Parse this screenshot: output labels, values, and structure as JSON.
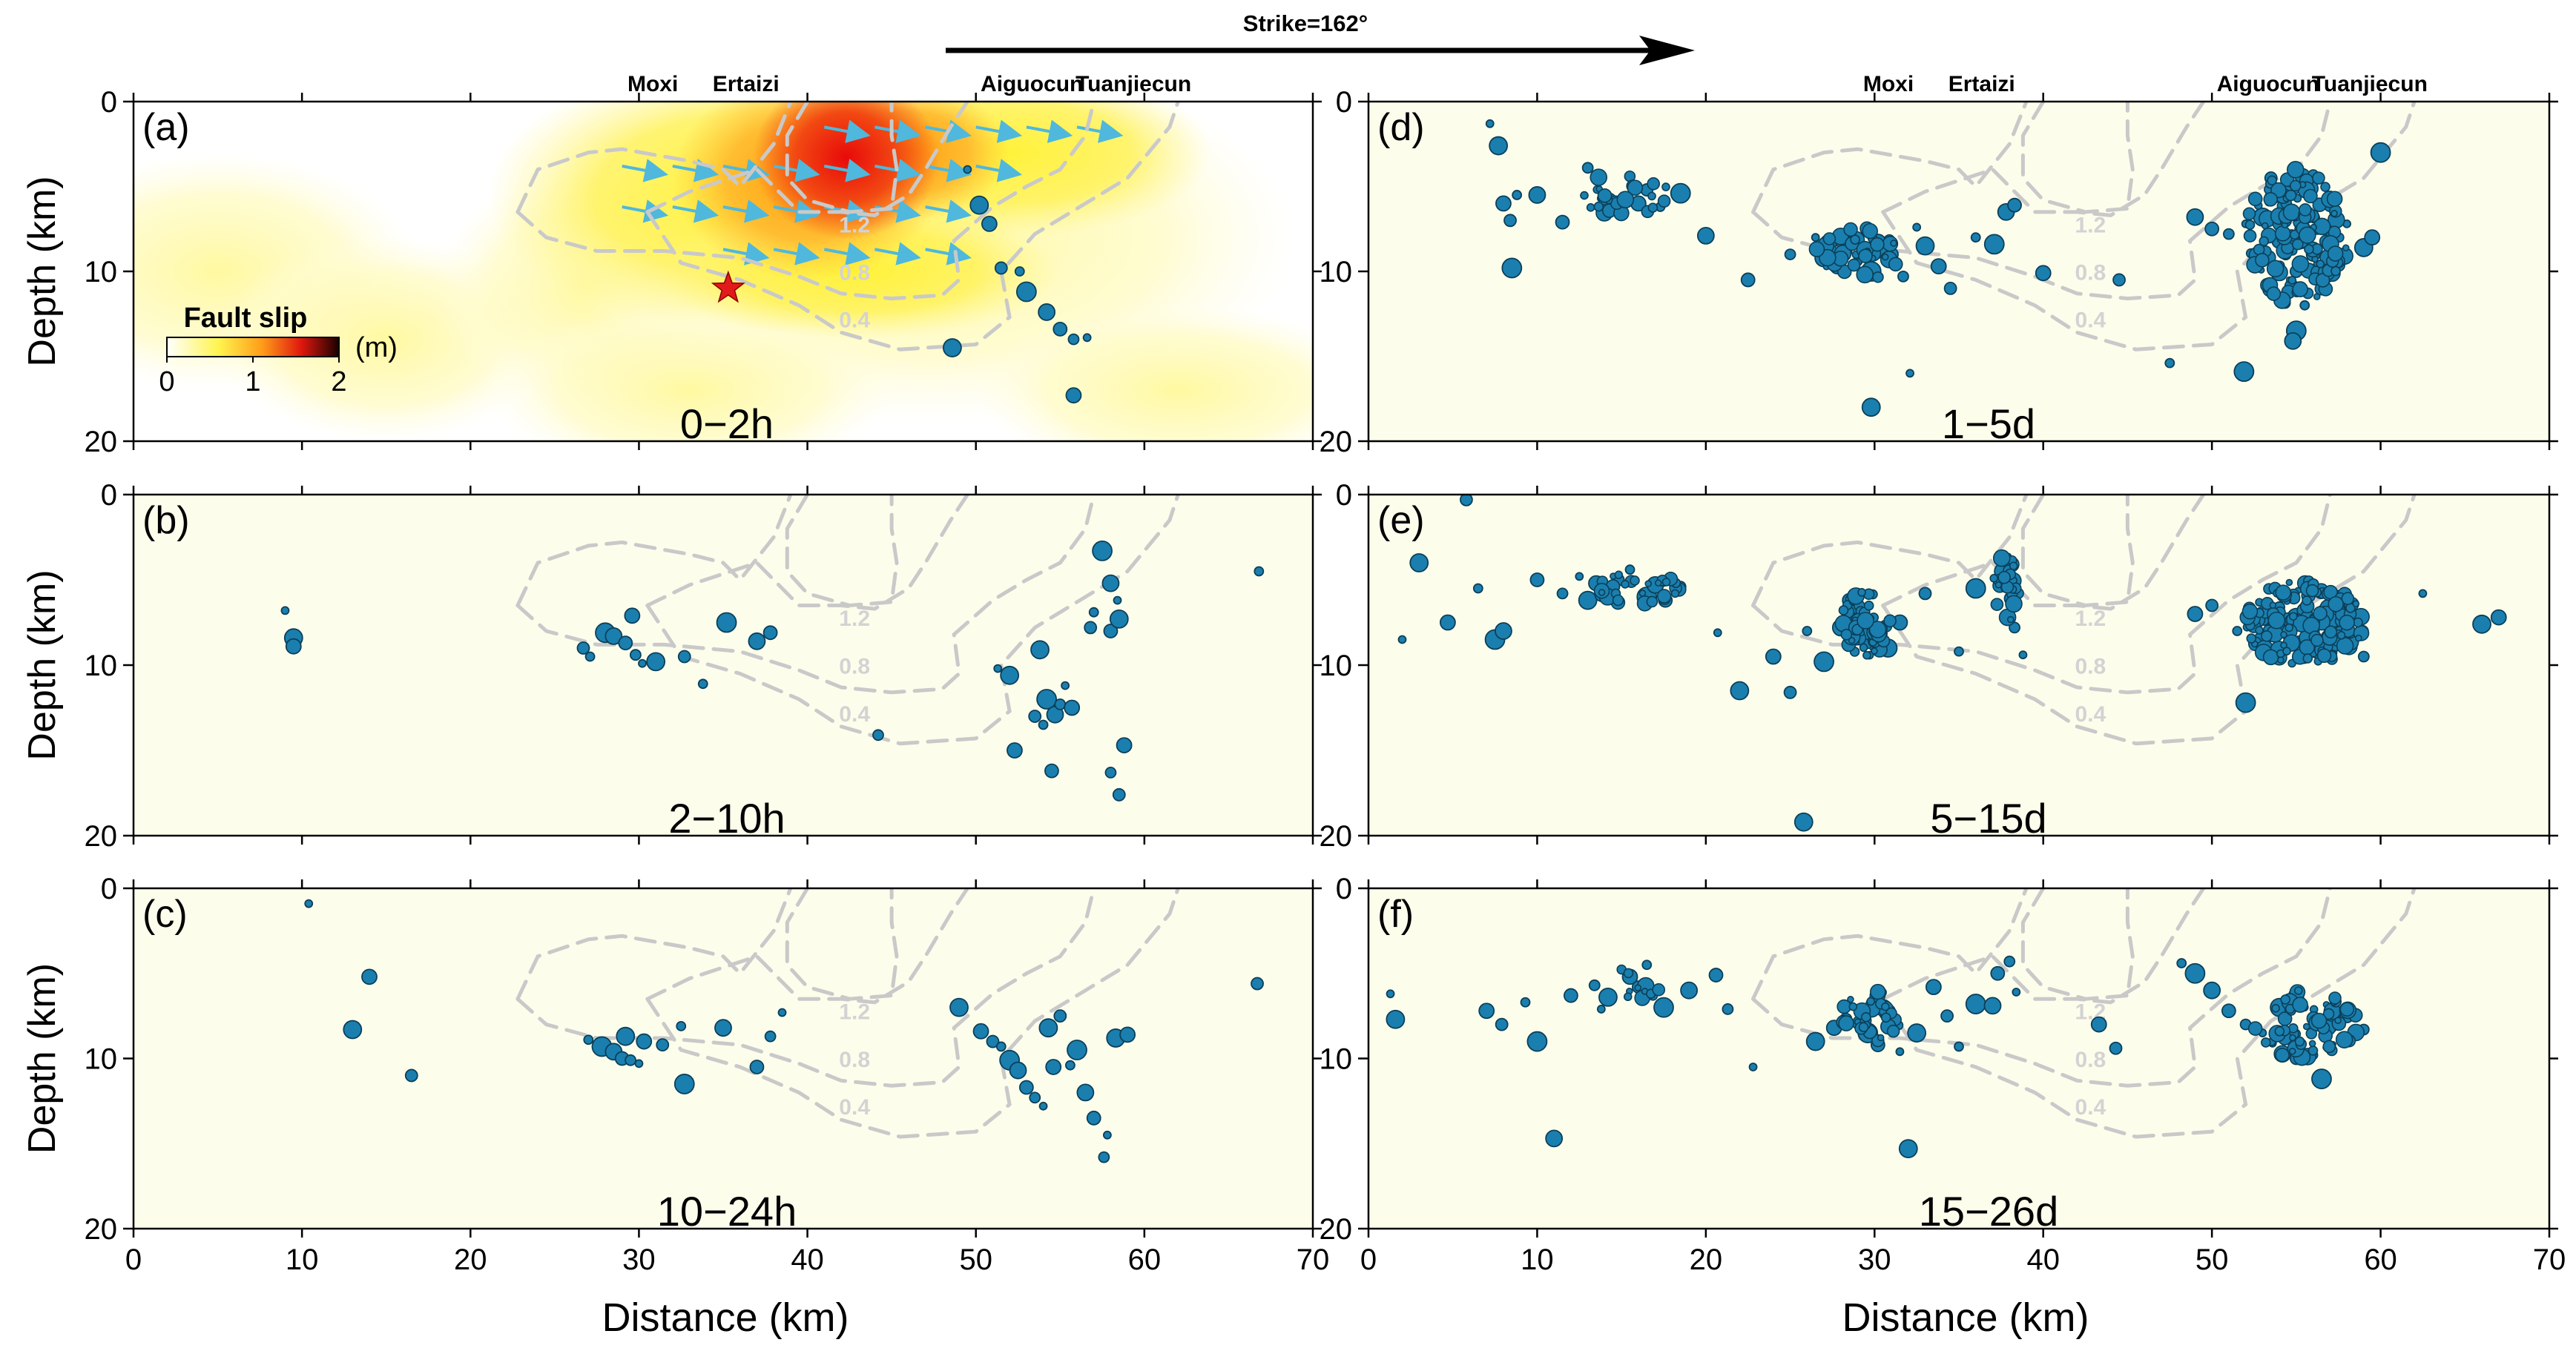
{
  "figure": {
    "strike_label": "Strike=162°",
    "xlabel": "Distance (km)",
    "ylabel": "Depth (km)",
    "xlim": [
      0,
      70
    ],
    "ylim": [
      0,
      20
    ],
    "xticks": [
      0,
      10,
      20,
      30,
      40,
      50,
      60,
      70
    ],
    "yticks": [
      0,
      10,
      20
    ],
    "towns": [
      {
        "name": "Moxi",
        "x": 31
      },
      {
        "name": "Ertaizi",
        "x": 36
      },
      {
        "name": "Aiguocun",
        "x": 53.5
      },
      {
        "name": "Tuanjiecun",
        "x": 59
      }
    ],
    "colors": {
      "panel_bg": "#fdfdec",
      "quake_fill": "#1a7fae",
      "quake_stroke": "#0b3f59",
      "contour": "#c9c9c9",
      "arrow": "#4fb8dc",
      "star": "#e31a1c"
    }
  },
  "colorbar": {
    "title": "Fault slip",
    "unit": "(m)",
    "ticks": [
      "0",
      "1",
      "2"
    ]
  },
  "contours": [
    {
      "level": "1.2",
      "label_x": 42.8,
      "label_y": 7.7
    },
    {
      "level": "0.8",
      "label_x": 42.8,
      "label_y": 10.5
    },
    {
      "level": "0.4",
      "label_x": 42.8,
      "label_y": 13.3
    }
  ],
  "panels": [
    {
      "id": "a",
      "label": "(a)",
      "time": "0−2h"
    },
    {
      "id": "b",
      "label": "(b)",
      "time": "2−10h"
    },
    {
      "id": "c",
      "label": "(c)",
      "time": "10−24h"
    },
    {
      "id": "d",
      "label": "(d)",
      "time": "1−5d"
    },
    {
      "id": "e",
      "label": "(e)",
      "time": "5−15d"
    },
    {
      "id": "f",
      "label": "(f)",
      "time": "15−26d"
    }
  ],
  "chart_data": [
    {
      "type": "scatter",
      "panel": "a",
      "time_window": "0−2h",
      "mainshock": {
        "x": 35.3,
        "y": 11
      },
      "points": [
        [
          49.5,
          4
        ],
        [
          50.2,
          6.1
        ],
        [
          50.8,
          7.2
        ],
        [
          51.5,
          9.8
        ],
        [
          52.6,
          10
        ],
        [
          53,
          11.2
        ],
        [
          54.2,
          12.4
        ],
        [
          55,
          13.4
        ],
        [
          55.8,
          14
        ],
        [
          56.6,
          13.9
        ],
        [
          48.6,
          14.5
        ],
        [
          55.8,
          17.3
        ]
      ]
    },
    {
      "type": "scatter",
      "panel": "b",
      "time_window": "2−10h",
      "points": [
        [
          9,
          6.8
        ],
        [
          9.5,
          8.4
        ],
        [
          9.5,
          8.9
        ],
        [
          26.7,
          9
        ],
        [
          27.1,
          9.5
        ],
        [
          28,
          8.1
        ],
        [
          28.5,
          8.3
        ],
        [
          29.2,
          8.7
        ],
        [
          29.8,
          9.4
        ],
        [
          30.2,
          9.9
        ],
        [
          31,
          9.8
        ],
        [
          29.6,
          7.1
        ],
        [
          32.7,
          9.5
        ],
        [
          33.8,
          11.1
        ],
        [
          35.2,
          7.5
        ],
        [
          37,
          8.6
        ],
        [
          37.8,
          8.1
        ],
        [
          44.2,
          14.1
        ],
        [
          51.3,
          10.2
        ],
        [
          52,
          10.6
        ],
        [
          52.3,
          15
        ],
        [
          53.5,
          13
        ],
        [
          54,
          13.5
        ],
        [
          54.2,
          12
        ],
        [
          54.7,
          12.9
        ],
        [
          54.5,
          16.2
        ],
        [
          55,
          12.3
        ],
        [
          55.3,
          11.2
        ],
        [
          53.8,
          9.1
        ],
        [
          55.7,
          12.5
        ],
        [
          56.8,
          7.8
        ],
        [
          57,
          6.9
        ],
        [
          57.5,
          3.3
        ],
        [
          58,
          5.2
        ],
        [
          58,
          8
        ],
        [
          58,
          16.3
        ],
        [
          58.4,
          6.2
        ],
        [
          58.5,
          7.3
        ],
        [
          58.8,
          14.7
        ],
        [
          58.5,
          17.6
        ],
        [
          66.8,
          4.5
        ]
      ]
    },
    {
      "type": "scatter",
      "panel": "c",
      "time_window": "10−24h",
      "points": [
        [
          10.4,
          0.9
        ],
        [
          13,
          8.3
        ],
        [
          14,
          5.2
        ],
        [
          16.5,
          11
        ],
        [
          27,
          8.9
        ],
        [
          27.8,
          9.3
        ],
        [
          28.5,
          9.6
        ],
        [
          29,
          10
        ],
        [
          29.5,
          10.1
        ],
        [
          30,
          10.3
        ],
        [
          29.2,
          8.7
        ],
        [
          30.3,
          9
        ],
        [
          31.4,
          9.2
        ],
        [
          32.5,
          8.1
        ],
        [
          32.7,
          11.5
        ],
        [
          35,
          8.2
        ],
        [
          37,
          10.5
        ],
        [
          37.8,
          8.7
        ],
        [
          38.5,
          7.3
        ],
        [
          49,
          7
        ],
        [
          50.3,
          8.4
        ],
        [
          51,
          9
        ],
        [
          51.5,
          9.3
        ],
        [
          52,
          10.1
        ],
        [
          52.5,
          10.7
        ],
        [
          53,
          11.7
        ],
        [
          53.5,
          12.3
        ],
        [
          54,
          12.8
        ],
        [
          54.3,
          8.2
        ],
        [
          54.6,
          10.5
        ],
        [
          55,
          7.5
        ],
        [
          55.6,
          10.4
        ],
        [
          56,
          9.5
        ],
        [
          56.5,
          12
        ],
        [
          57,
          13.5
        ],
        [
          57.6,
          15.8
        ],
        [
          57.8,
          14.5
        ],
        [
          58.3,
          8.8
        ],
        [
          59,
          8.6
        ],
        [
          66.7,
          5.6
        ]
      ]
    },
    {
      "type": "scatter",
      "panel": "d",
      "time_window": "1−5d",
      "points": [
        [
          7.2,
          1.3
        ],
        [
          7.7,
          2.6
        ],
        [
          8,
          6
        ],
        [
          8.4,
          7
        ],
        [
          8.8,
          5.5
        ],
        [
          8.5,
          9.8
        ],
        [
          10,
          5.5
        ],
        [
          11.5,
          7.1
        ],
        [
          13,
          3.9
        ],
        [
          13.8,
          5.7
        ],
        [
          14.2,
          5.9
        ],
        [
          16,
          6
        ],
        [
          16.5,
          5.2
        ],
        [
          17.3,
          6.2
        ],
        [
          18.5,
          5.4
        ],
        [
          20,
          7.9
        ],
        [
          22.5,
          10.5
        ],
        [
          25,
          9
        ],
        [
          26.5,
          8
        ],
        [
          27,
          9.2
        ],
        [
          27.8,
          9.7
        ],
        [
          28.3,
          8.8
        ],
        [
          29,
          9.4
        ],
        [
          29.8,
          10
        ],
        [
          30.2,
          8.3
        ],
        [
          31,
          9
        ],
        [
          31.7,
          10.3
        ],
        [
          32.5,
          7.4
        ],
        [
          33,
          8.5
        ],
        [
          33.8,
          9.7
        ],
        [
          34.5,
          11
        ],
        [
          36,
          8
        ],
        [
          37.1,
          8.4
        ],
        [
          37.8,
          6.5
        ],
        [
          38.3,
          6.1
        ],
        [
          31,
          9.5
        ],
        [
          32.1,
          16
        ],
        [
          29.8,
          18
        ],
        [
          40,
          10.1
        ],
        [
          44.5,
          10.5
        ],
        [
          47.5,
          15.4
        ],
        [
          51.9,
          15.9
        ],
        [
          49,
          6.8
        ],
        [
          50,
          7.5
        ],
        [
          51,
          7.8
        ],
        [
          52,
          7.2
        ],
        [
          53,
          6.8
        ],
        [
          54,
          8.2
        ],
        [
          55,
          10
        ],
        [
          55.5,
          12
        ],
        [
          55,
          13.5
        ],
        [
          54.8,
          14.1
        ],
        [
          56,
          9
        ],
        [
          57,
          8
        ],
        [
          58,
          7.2
        ],
        [
          59,
          8.6
        ],
        [
          59.5,
          8
        ],
        [
          53.5,
          4.5
        ],
        [
          54.5,
          4.8
        ],
        [
          60,
          3
        ]
      ]
    },
    {
      "type": "scatter",
      "panel": "e",
      "time_window": "5−15d",
      "points": [
        [
          2,
          8.5
        ],
        [
          3,
          4
        ],
        [
          4.7,
          7.5
        ],
        [
          5.8,
          0.3
        ],
        [
          6.5,
          5.5
        ],
        [
          7.5,
          8.5
        ],
        [
          8,
          8
        ],
        [
          10,
          5
        ],
        [
          11.5,
          5.8
        ],
        [
          12.5,
          4.8
        ],
        [
          13,
          6.2
        ],
        [
          13.5,
          5.2
        ],
        [
          14.8,
          5
        ],
        [
          15.5,
          4.4
        ],
        [
          16.5,
          6
        ],
        [
          17,
          5.3
        ],
        [
          17.6,
          6.2
        ],
        [
          18.5,
          5.4
        ],
        [
          20.7,
          8.1
        ],
        [
          22,
          11.5
        ],
        [
          24,
          9.5
        ],
        [
          25,
          11.6
        ],
        [
          26,
          8
        ],
        [
          27,
          9.8
        ],
        [
          28,
          7.8
        ],
        [
          28.5,
          6.2
        ],
        [
          29.2,
          7.3
        ],
        [
          30,
          8.6
        ],
        [
          30.8,
          9
        ],
        [
          31.5,
          7.5
        ],
        [
          33,
          5.8
        ],
        [
          35,
          9.2
        ],
        [
          36,
          5.5
        ],
        [
          37.6,
          4.5
        ],
        [
          38.1,
          6.1
        ],
        [
          38.3,
          7.8
        ],
        [
          38.8,
          9.4
        ],
        [
          25.8,
          19.2
        ],
        [
          49,
          7
        ],
        [
          50,
          6.5
        ],
        [
          51.5,
          8
        ],
        [
          52,
          12.2
        ],
        [
          53,
          8.5
        ],
        [
          53.5,
          7.5
        ],
        [
          54,
          6.6
        ],
        [
          54.5,
          9
        ],
        [
          55,
          7.2
        ],
        [
          55.5,
          6.8
        ],
        [
          56,
          8
        ],
        [
          56.5,
          9.2
        ],
        [
          57,
          7.5
        ],
        [
          57.5,
          8.2
        ],
        [
          58,
          7.4
        ],
        [
          59,
          9.5
        ],
        [
          62.5,
          5.8
        ],
        [
          66,
          7.6
        ],
        [
          67,
          7.2
        ]
      ]
    },
    {
      "type": "scatter",
      "panel": "f",
      "time_window": "15−26d",
      "points": [
        [
          1.3,
          6.2
        ],
        [
          1.6,
          7.7
        ],
        [
          7,
          7.2
        ],
        [
          7.9,
          8
        ],
        [
          9.3,
          6.7
        ],
        [
          10,
          9
        ],
        [
          11,
          14.7
        ],
        [
          12,
          6.3
        ],
        [
          13.4,
          5.7
        ],
        [
          13.8,
          7.1
        ],
        [
          14.2,
          6.4
        ],
        [
          15.5,
          5.2
        ],
        [
          16,
          5.8
        ],
        [
          16.5,
          4.5
        ],
        [
          17.5,
          7
        ],
        [
          19,
          6
        ],
        [
          20.6,
          5.1
        ],
        [
          21.3,
          7.1
        ],
        [
          22.8,
          10.5
        ],
        [
          26.5,
          9
        ],
        [
          27.6,
          8.2
        ],
        [
          28.3,
          7.7
        ],
        [
          29.3,
          7.3
        ],
        [
          29.6,
          8.5
        ],
        [
          30,
          6.8
        ],
        [
          30.2,
          9.2
        ],
        [
          31,
          8
        ],
        [
          31.5,
          9.6
        ],
        [
          32.5,
          8.5
        ],
        [
          33.5,
          5.8
        ],
        [
          34.3,
          7.5
        ],
        [
          35,
          9.3
        ],
        [
          36,
          6.8
        ],
        [
          37,
          6.9
        ],
        [
          37.3,
          5
        ],
        [
          38,
          4.3
        ],
        [
          38.4,
          6.1
        ],
        [
          32,
          15.3
        ],
        [
          43.3,
          8
        ],
        [
          44.3,
          9.4
        ],
        [
          48.2,
          4.4
        ],
        [
          49,
          5
        ],
        [
          50,
          6
        ],
        [
          51,
          7.2
        ],
        [
          52,
          8
        ],
        [
          53,
          8.5
        ],
        [
          54,
          7
        ],
        [
          55,
          6.3
        ],
        [
          55,
          10
        ],
        [
          56,
          9.8
        ],
        [
          56.5,
          11.2
        ],
        [
          57,
          8
        ],
        [
          58,
          7.5
        ],
        [
          59,
          8.3
        ]
      ]
    }
  ]
}
